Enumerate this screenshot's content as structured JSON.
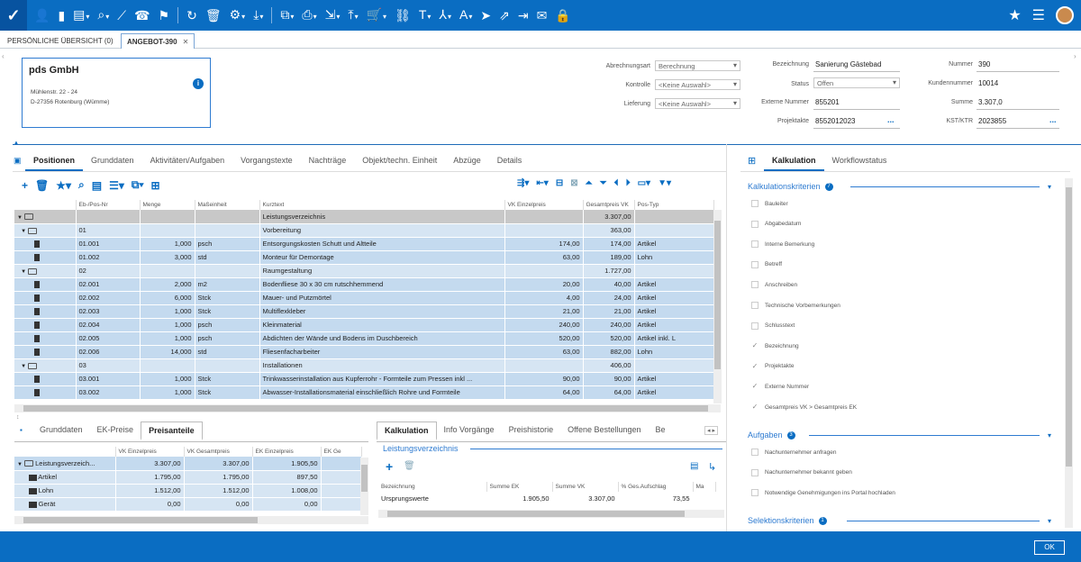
{
  "toolbar": {
    "icons": [
      "user-plus-icon",
      "doc-add-icon",
      "doc-list-icon",
      "doc-search-icon",
      "chart-icon",
      "phone-icon",
      "bookmark-icon",
      "refresh-icon",
      "trash-icon",
      "gear-icon",
      "download-icon",
      "copy-icon",
      "print-icon",
      "doc-export-icon",
      "upload-icon",
      "cart-icon",
      "link-icon",
      "teams-icon",
      "hierarchy-icon",
      "font-icon",
      "send-icon",
      "share-icon",
      "import-icon",
      "mail-icon",
      "lock-icon"
    ]
  },
  "tabs": {
    "overview": "PERSÖNLICHE ÜBERSICHT (0)",
    "offer": "ANGEBOT-390"
  },
  "company": {
    "name": "pds GmbH",
    "street": "Mühlenstr. 22 - 24",
    "city": "D-27356 Rotenburg (Wümme)"
  },
  "fields": {
    "abrechnungsart_label": "Abrechnungsart",
    "abrechnungsart_value": "Berechnung",
    "kontrolle_label": "Kontrolle",
    "kontrolle_value": "<Keine Auswahl>",
    "lieferung_label": "Lieferung",
    "lieferung_value": "<Keine Auswahl>",
    "bezeichnung_label": "Bezeichnung",
    "bezeichnung_value": "Sanierung Gästebad",
    "status_label": "Status",
    "status_value": "Offen",
    "externe_label": "Externe Nummer",
    "externe_value": "855201",
    "projektakte_label": "Projektakte",
    "projektakte_value": "8552012023",
    "nummer_label": "Nummer",
    "nummer_value": "390",
    "kunde_label": "Kundennummer",
    "kunde_value": "10014",
    "summe_label": "Summe",
    "summe_value": "3.307,0",
    "kst_label": "KST/KTR",
    "kst_value": "2023855",
    "dots": "..."
  },
  "main_tabs": [
    "Positionen",
    "Grunddaten",
    "Aktivitäten/Aufgaben",
    "Vorgangstexte",
    "Nachträge",
    "Objekt/techn. Einheit",
    "Abzüge",
    "Details"
  ],
  "positions": {
    "headers": [
      "Eb-/Pos-Nr",
      "Menge",
      "Maßeinheit",
      "Kurztext",
      "VK Einzelpreis",
      "Gesamtpreis VK",
      "Pos-Typ"
    ],
    "rows": [
      {
        "lvl": 0,
        "nr": "",
        "menge": "",
        "me": "",
        "text": "Leistungsverzeichnis",
        "ep": "",
        "gp": "3.307,00",
        "typ": ""
      },
      {
        "lvl": 1,
        "nr": "01",
        "menge": "",
        "me": "",
        "text": "Vorbereitung",
        "ep": "",
        "gp": "363,00",
        "typ": ""
      },
      {
        "lvl": 2,
        "nr": "01.001",
        "menge": "1,000",
        "me": "psch",
        "text": "Entsorgungskosten Schutt und Altteile",
        "ep": "174,00",
        "gp": "174,00",
        "typ": "Artikel"
      },
      {
        "lvl": 2,
        "nr": "01.002",
        "menge": "3,000",
        "me": "std",
        "text": "Monteur für Demontage",
        "ep": "63,00",
        "gp": "189,00",
        "typ": "Lohn"
      },
      {
        "lvl": 1,
        "nr": "02",
        "menge": "",
        "me": "",
        "text": "Raumgestaltung",
        "ep": "",
        "gp": "1.727,00",
        "typ": ""
      },
      {
        "lvl": 2,
        "nr": "02.001",
        "menge": "2,000",
        "me": "m2",
        "text": "Bodenfliese 30 x 30 cm rutschhemmend",
        "ep": "20,00",
        "gp": "40,00",
        "typ": "Artikel"
      },
      {
        "lvl": 2,
        "nr": "02.002",
        "menge": "6,000",
        "me": "Stck",
        "text": "Mauer- und Putzmörtel",
        "ep": "4,00",
        "gp": "24,00",
        "typ": "Artikel"
      },
      {
        "lvl": 2,
        "nr": "02.003",
        "menge": "1,000",
        "me": "Stck",
        "text": "Multiflexkleber",
        "ep": "21,00",
        "gp": "21,00",
        "typ": "Artikel"
      },
      {
        "lvl": 2,
        "nr": "02.004",
        "menge": "1,000",
        "me": "psch",
        "text": "Kleinmaterial",
        "ep": "240,00",
        "gp": "240,00",
        "typ": "Artikel"
      },
      {
        "lvl": 2,
        "nr": "02.005",
        "menge": "1,000",
        "me": "psch",
        "text": "Abdichten der Wände und Bodens im Duschbereich",
        "ep": "520,00",
        "gp": "520,00",
        "typ": "Artikel inkl. L"
      },
      {
        "lvl": 2,
        "nr": "02.006",
        "menge": "14,000",
        "me": "std",
        "text": "Fliesenfacharbeiter",
        "ep": "63,00",
        "gp": "882,00",
        "typ": "Lohn"
      },
      {
        "lvl": 1,
        "nr": "03",
        "menge": "",
        "me": "",
        "text": "Installationen",
        "ep": "",
        "gp": "406,00",
        "typ": ""
      },
      {
        "lvl": 2,
        "nr": "03.001",
        "menge": "1,000",
        "me": "Stck",
        "text": "Trinkwasserinstallation aus Kupferrohr - Formteile zum Pressen inkl ...",
        "ep": "90,00",
        "gp": "90,00",
        "typ": "Artikel"
      },
      {
        "lvl": 2,
        "nr": "03.002",
        "menge": "1,000",
        "me": "Stck",
        "text": "Abwasser-Installationsmaterial einschließlich Rohre und Formteile",
        "ep": "64,00",
        "gp": "64,00",
        "typ": "Artikel"
      }
    ]
  },
  "bottom_left": {
    "tabs": [
      "Grunddaten",
      "EK-Preise",
      "Preisanteile"
    ],
    "headers": [
      "",
      "VK Einzelpreis",
      "VK Gesamtpreis",
      "EK Einzelpreis",
      "EK Ge"
    ],
    "rows": [
      {
        "name": "Leistungsverzeich...",
        "a": "3.307,00",
        "b": "3.307,00",
        "c": "1.905,50"
      },
      {
        "name": "Artikel",
        "a": "1.795,00",
        "b": "1.795,00",
        "c": "897,50"
      },
      {
        "name": "Lohn",
        "a": "1.512,00",
        "b": "1.512,00",
        "c": "1.008,00"
      },
      {
        "name": "Gerät",
        "a": "0,00",
        "b": "0,00",
        "c": "0,00"
      }
    ]
  },
  "bottom_right": {
    "tabs": [
      "Kalkulation",
      "Info Vorgänge",
      "Preishistorie",
      "Offene Bestellungen",
      "Be"
    ],
    "section": "Leistungsverzeichnis",
    "headers": [
      "Bezeichnung",
      "Summe EK",
      "Summe VK",
      "% Ges.Aufschlag",
      "Ma"
    ],
    "row": {
      "name": "Ursprungswerte",
      "ek": "1.905,50",
      "vk": "3.307,00",
      "pct": "73,55"
    }
  },
  "side": {
    "tabs": [
      "Kalkulation",
      "Workflowstatus"
    ],
    "kalk_title": "Kalkulationskriterien",
    "kalk_count": "7",
    "kalk_items": [
      {
        "label": "Bauleiter",
        "checked": false
      },
      {
        "label": "Abgabedatum",
        "checked": false
      },
      {
        "label": "Interne Bemerkung",
        "checked": false
      },
      {
        "label": "Betreff",
        "checked": false
      },
      {
        "label": "Anschreiben",
        "checked": false
      },
      {
        "label": "Technische Vorbemerkungen",
        "checked": false
      },
      {
        "label": "Schlusstext",
        "checked": false
      },
      {
        "label": "Bezeichnung",
        "checked": true
      },
      {
        "label": "Projektakte",
        "checked": true
      },
      {
        "label": "Externe Nummer",
        "checked": true
      },
      {
        "label": "Gesamtpreis VK > Gesamtpreis EK",
        "checked": true
      }
    ],
    "aufg_title": "Aufgaben",
    "aufg_count": "3",
    "aufg_items": [
      {
        "label": "Nachunternehmer anfragen"
      },
      {
        "label": "Nachunternehmer bekannt geben"
      },
      {
        "label": "Notwendige Genehmigungen ins Portal hochladen"
      }
    ],
    "sel_title": "Selektionskriterien",
    "sel_count": "1"
  },
  "footer": {
    "ok": "OK"
  }
}
